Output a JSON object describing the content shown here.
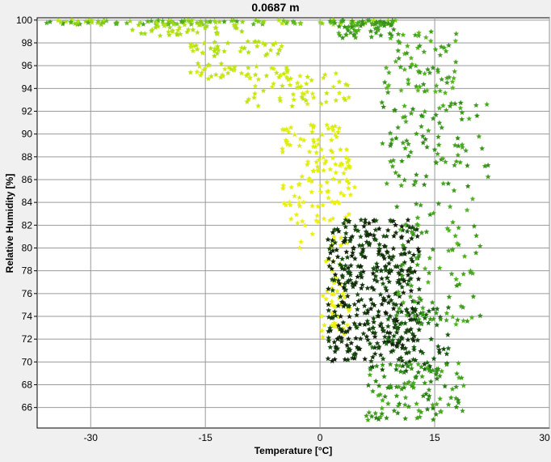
{
  "chart_data": {
    "type": "scatter",
    "title": "0.0687 m",
    "xlabel": "Temperature [°C]",
    "ylabel": "Relative Humidity [%]",
    "xlim": [
      -37,
      30
    ],
    "ylim": [
      64.2,
      100.2
    ],
    "xticks": [
      -30,
      -15,
      0,
      15,
      30
    ],
    "yticks": [
      66,
      68,
      70,
      72,
      74,
      76,
      78,
      80,
      82,
      84,
      86,
      88,
      90,
      92,
      94,
      96,
      98,
      100
    ],
    "grid": true,
    "legend": "none",
    "marker": "star",
    "color_scale": [
      "#111a08",
      "#1a6b12",
      "#4fb022",
      "#9ad81a",
      "#d8ec10",
      "#f0f012"
    ],
    "series": [
      {
        "clusters": [
          {
            "x": [
              -36,
              10
            ],
            "y": [
              99.6,
              100
            ],
            "n": 130,
            "c": [
              0.35,
              0.7
            ]
          },
          {
            "x": [
              -25,
              -10
            ],
            "y": [
              98.6,
              99.6
            ],
            "n": 40,
            "c": [
              0.6,
              0.72
            ]
          },
          {
            "x": [
              -18,
              -5
            ],
            "y": [
              96.8,
              98.2
            ],
            "n": 40,
            "c": [
              0.65,
              0.75
            ]
          },
          {
            "x": [
              -17,
              -4
            ],
            "y": [
              94.8,
              96.2
            ],
            "n": 40,
            "c": [
              0.7,
              0.8
            ]
          },
          {
            "x": [
              -10,
              4
            ],
            "y": [
              92.4,
              95.4
            ],
            "n": 55,
            "c": [
              0.72,
              0.82
            ]
          },
          {
            "x": [
              -5,
              4
            ],
            "y": [
              88.2,
              90.8
            ],
            "n": 45,
            "c": [
              0.82,
              0.9
            ]
          },
          {
            "x": [
              -3,
              4
            ],
            "y": [
              85.5,
              88
            ],
            "n": 40,
            "c": [
              0.86,
              0.92
            ]
          },
          {
            "x": [
              -5,
              5
            ],
            "y": [
              83.5,
              85.5
            ],
            "n": 30,
            "c": [
              0.9,
              0.97
            ]
          },
          {
            "x": [
              -4,
              4
            ],
            "y": [
              79.5,
              83
            ],
            "n": 25,
            "c": [
              0.92,
              1
            ]
          },
          {
            "x": [
              0,
              4
            ],
            "y": [
              72,
              79
            ],
            "n": 45,
            "c": [
              0.94,
              1
            ]
          },
          {
            "x": [
              1,
              13
            ],
            "y": [
              70,
              82.5
            ],
            "n": 420,
            "c": [
              0,
              0.15
            ]
          },
          {
            "x": [
              6,
              17
            ],
            "y": [
              69,
              75
            ],
            "n": 60,
            "c": [
              0.1,
              0.22
            ]
          },
          {
            "x": [
              6,
              19
            ],
            "y": [
              64.8,
              70
            ],
            "n": 110,
            "c": [
              0.25,
              0.4
            ]
          },
          {
            "x": [
              10,
              21
            ],
            "y": [
              73,
              84.5
            ],
            "n": 90,
            "c": [
              0.3,
              0.42
            ]
          },
          {
            "x": [
              8,
              22
            ],
            "y": [
              85,
              93
            ],
            "n": 95,
            "c": [
              0.28,
              0.4
            ]
          },
          {
            "x": [
              8,
              18
            ],
            "y": [
              93.6,
              99
            ],
            "n": 70,
            "c": [
              0.32,
              0.45
            ]
          },
          {
            "x": [
              2,
              10
            ],
            "y": [
              98.4,
              100
            ],
            "n": 60,
            "c": [
              0.3,
              0.4
            ]
          }
        ]
      }
    ]
  }
}
